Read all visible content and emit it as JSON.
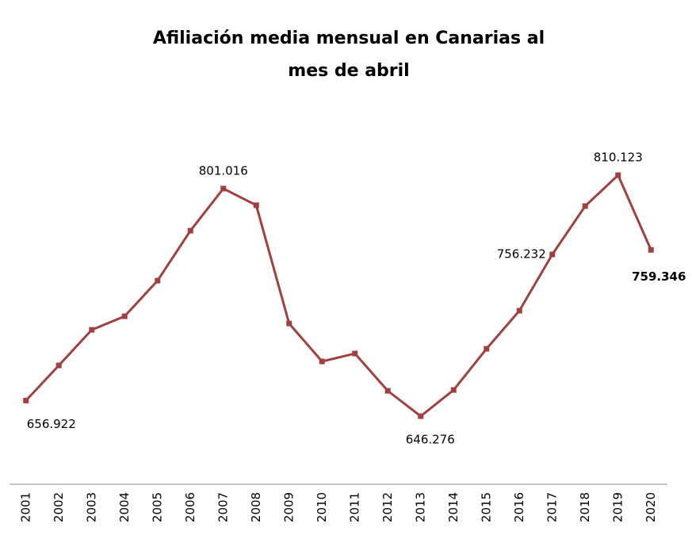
{
  "chart_data": {
    "type": "line",
    "title": "Afiliación media mensual en Canarias al mes de abril",
    "categories": [
      "2001",
      "2002",
      "2003",
      "2004",
      "2005",
      "2006",
      "2007",
      "2008",
      "2009",
      "2010",
      "2011",
      "2012",
      "2013",
      "2014",
      "2015",
      "2016",
      "2017",
      "2018",
      "2019",
      "2020"
    ],
    "series": [
      {
        "name": "Afiliación media mensual",
        "color": "#a0403f",
        "values": [
          656922,
          680800,
          705000,
          714200,
          738400,
          772400,
          801016,
          789700,
          709300,
          683500,
          688900,
          663500,
          646276,
          664100,
          692100,
          718000,
          756232,
          789100,
          810123,
          759346
        ],
        "value_labels": [
          "656.922",
          null,
          null,
          null,
          null,
          null,
          "801.016",
          null,
          null,
          null,
          null,
          null,
          "646.276",
          null,
          null,
          null,
          "756.232",
          null,
          "810.123",
          "759.346"
        ]
      }
    ],
    "ylim": [
      600000,
      850000
    ],
    "legend": false,
    "grid": false
  }
}
